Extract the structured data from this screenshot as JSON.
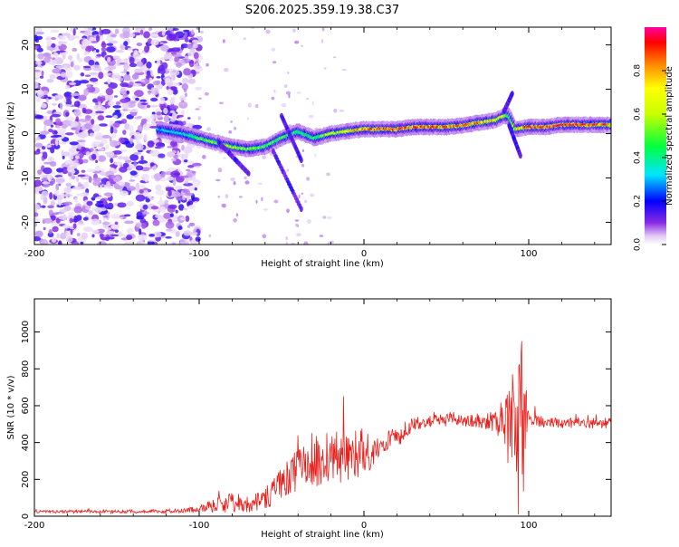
{
  "page_title": "S206.2025.359.19.38.C37",
  "chart_data": [
    {
      "type": "heatmap",
      "xlabel": "Height of straight line (km)",
      "ylabel": "Frequency (Hz)",
      "xlim": [
        -200,
        150
      ],
      "ylim": [
        -25,
        24
      ],
      "xticks": [
        -200,
        -100,
        0,
        100
      ],
      "yticks": [
        -20,
        -10,
        0,
        10,
        20
      ],
      "grid": false,
      "colorbar": {
        "label": "Normalized spectral amplitude",
        "range": [
          0,
          1
        ],
        "ticks": [
          "0.0",
          "0.2",
          "0.4",
          "0.6",
          "0.8"
        ]
      },
      "ridge": {
        "x": [
          -125,
          -110,
          -100,
          -90,
          -80,
          -70,
          -60,
          -50,
          -40,
          -30,
          -20,
          -10,
          0,
          10,
          20,
          30,
          40,
          50,
          60,
          70,
          80,
          85,
          88,
          92,
          100,
          110,
          120,
          130,
          140,
          150
        ],
        "y": [
          1,
          0,
          -1,
          -2,
          -3,
          -3.5,
          -3,
          -1,
          0.5,
          -1,
          0,
          0.5,
          1,
          1,
          1,
          1.5,
          1.5,
          1.5,
          1.8,
          2.5,
          3,
          4,
          4,
          1,
          1.5,
          1.5,
          2,
          2,
          2,
          2
        ],
        "amplitude": [
          0.3,
          0.35,
          0.5,
          0.55,
          0.6,
          0.55,
          0.5,
          0.5,
          0.45,
          0.45,
          0.6,
          0.7,
          0.8,
          0.85,
          0.9,
          0.85,
          0.85,
          0.85,
          0.8,
          0.8,
          0.7,
          0.7,
          0.5,
          0.6,
          0.9,
          0.9,
          0.95,
          0.9,
          0.85,
          0.85
        ]
      }
    },
    {
      "type": "line",
      "xlabel": "Height of straight line (km)",
      "ylabel": "SNR (10 * v/v)",
      "xlim": [
        -200,
        150
      ],
      "ylim": [
        0,
        1180
      ],
      "xticks": [
        -200,
        -100,
        0,
        100
      ],
      "yticks": [
        0,
        200,
        400,
        600,
        800,
        1000
      ],
      "grid": false,
      "series_color": "#e8201c",
      "envelope": {
        "x": [
          -200,
          -150,
          -110,
          -100,
          -90,
          -80,
          -70,
          -60,
          -50,
          -40,
          -30,
          -20,
          -10,
          0,
          10,
          20,
          30,
          40,
          50,
          60,
          70,
          80,
          85,
          90,
          93,
          95,
          98,
          100,
          110,
          120,
          130,
          140,
          150
        ],
        "y": [
          25,
          25,
          28,
          40,
          60,
          80,
          60,
          100,
          160,
          260,
          300,
          320,
          320,
          310,
          360,
          430,
          500,
          520,
          520,
          520,
          520,
          510,
          500,
          480,
          450,
          420,
          480,
          520,
          510,
          505,
          505,
          505,
          505
        ],
        "spread": [
          8,
          10,
          12,
          20,
          40,
          60,
          40,
          60,
          100,
          120,
          140,
          150,
          130,
          100,
          80,
          60,
          40,
          35,
          35,
          35,
          40,
          60,
          150,
          300,
          500,
          600,
          400,
          40,
          30,
          30,
          30,
          30,
          30
        ]
      }
    }
  ]
}
